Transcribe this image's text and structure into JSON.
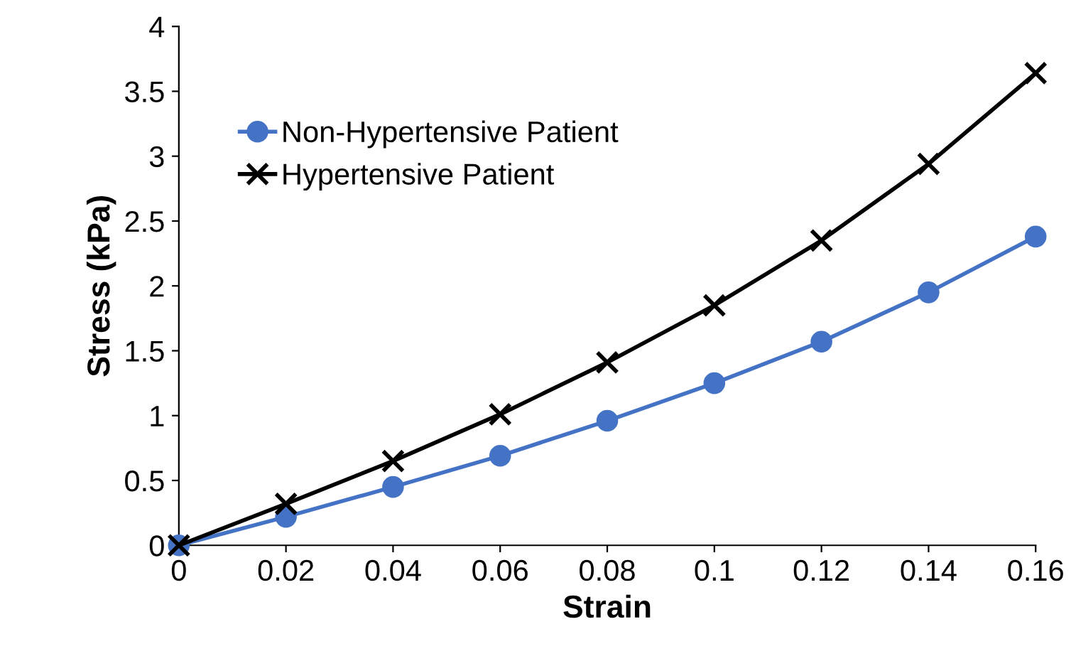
{
  "chart_data": {
    "type": "line",
    "xlabel": "Strain",
    "ylabel": "Stress (kPa)",
    "x": [
      0,
      0.02,
      0.04,
      0.06,
      0.08,
      0.1,
      0.12,
      0.14,
      0.16
    ],
    "series": [
      {
        "name": "Non-Hypertensive Patient",
        "color": "#4472c4",
        "marker": "circle",
        "values": [
          0,
          0.22,
          0.45,
          0.69,
          0.96,
          1.25,
          1.57,
          1.95,
          2.38
        ]
      },
      {
        "name": "Hypertensive Patient",
        "color": "#000000",
        "marker": "cross",
        "values": [
          0,
          0.32,
          0.65,
          1.01,
          1.41,
          1.85,
          2.35,
          2.94,
          3.64
        ]
      }
    ],
    "xlim": [
      0,
      0.16
    ],
    "ylim": [
      0,
      4
    ],
    "xticks": [
      0,
      0.02,
      0.04,
      0.06,
      0.08,
      0.1,
      0.12,
      0.14,
      0.16
    ],
    "yticks": [
      0,
      0.5,
      1,
      1.5,
      2,
      2.5,
      3,
      3.5,
      4
    ],
    "grid": false,
    "legend": "top left"
  }
}
